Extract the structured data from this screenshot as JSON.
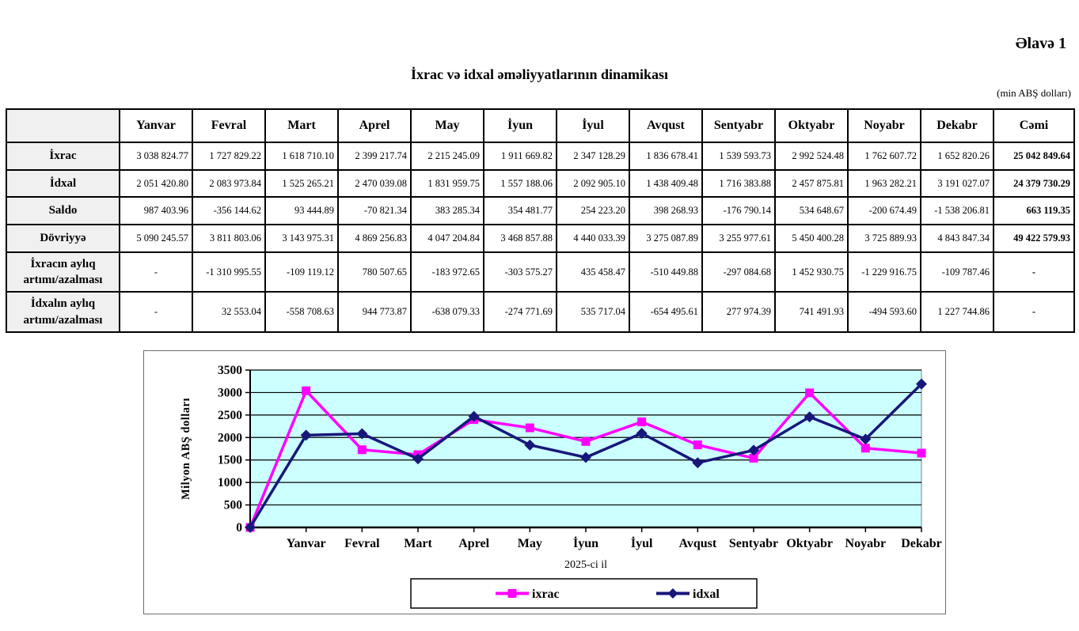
{
  "page": {
    "annex": "Əlavə 1",
    "title": "İxrac və idxal əməliyyatlarının dinamikası",
    "unit_note": "(min ABŞ dolları)"
  },
  "table": {
    "columns": [
      "",
      "Yanvar",
      "Fevral",
      "Mart",
      "Aprel",
      "May",
      "İyun",
      "İyul",
      "Avqust",
      "Sentyabr",
      "Oktyabr",
      "Noyabr",
      "Dekabr",
      "Cəmi"
    ],
    "rows": [
      {
        "label": "İxrac",
        "values": [
          "3 038 824.77",
          "1 727 829.22",
          "1 618 710.10",
          "2 399 217.74",
          "2 215 245.09",
          "1 911 669.82",
          "2 347 128.29",
          "1 836 678.41",
          "1 539 593.73",
          "2 992 524.48",
          "1 762 607.72",
          "1 652 820.26",
          "25 042 849.64"
        ]
      },
      {
        "label": "İdxal",
        "values": [
          "2 051 420.80",
          "2 083 973.84",
          "1 525 265.21",
          "2 470 039.08",
          "1 831 959.75",
          "1 557 188.06",
          "2 092 905.10",
          "1 438 409.48",
          "1 716 383.88",
          "2 457 875.81",
          "1 963 282.21",
          "3 191 027.07",
          "24 379 730.29"
        ]
      },
      {
        "label": "Saldo",
        "values": [
          "987 403.96",
          "-356 144.62",
          "93 444.89",
          "-70 821.34",
          "383 285.34",
          "354 481.77",
          "254 223.20",
          "398 268.93",
          "-176 790.14",
          "534 648.67",
          "-200 674.49",
          "-1 538 206.81",
          "663 119.35"
        ]
      },
      {
        "label": "Dövriyyə",
        "values": [
          "5 090 245.57",
          "3 811 803.06",
          "3 143 975.31",
          "4 869 256.83",
          "4 047 204.84",
          "3 468 857.88",
          "4 440 033.39",
          "3 275 087.89",
          "3 255 977.61",
          "5 450 400.28",
          "3 725 889.93",
          "4 843 847.34",
          "49 422 579.93"
        ]
      },
      {
        "label": "İxracın aylıq artımı/azalması",
        "values": [
          "-",
          "-1 310 995.55",
          "-109 119.12",
          "780 507.65",
          "-183 972.65",
          "-303 575.27",
          "435 458.47",
          "-510 449.88",
          "-297 084.68",
          "1 452 930.75",
          "-1 229 916.75",
          "-109 787.46",
          "-"
        ]
      },
      {
        "label": "İdxalın aylıq artımı/azalması",
        "values": [
          "-",
          "32 553.04",
          "-558 708.63",
          "944 773.87",
          "-638 079.33",
          "-274 771.69",
          "535 717.04",
          "-654 495.61",
          "277 974.39",
          "741 491.93",
          "-494 593.60",
          "1 227 744.86",
          "-"
        ]
      }
    ]
  },
  "chart_data": {
    "type": "line",
    "categories": [
      "",
      "Yanvar",
      "Fevral",
      "Mart",
      "Aprel",
      "May",
      "İyun",
      "İyul",
      "Avqust",
      "Sentyabr",
      "Oktyabr",
      "Noyabr",
      "Dekabr"
    ],
    "series": [
      {
        "name": "ixrac",
        "color": "#FF00FF",
        "marker": "square",
        "values": [
          0,
          3038.8,
          1727.8,
          1618.7,
          2399.2,
          2215.2,
          1911.7,
          2347.1,
          1836.7,
          1539.6,
          2992.5,
          1762.6,
          1652.8
        ]
      },
      {
        "name": "idxal",
        "color": "#17177A",
        "marker": "diamond",
        "values": [
          0,
          2051.4,
          2084.0,
          1525.3,
          2470.0,
          1832.0,
          1557.2,
          2092.9,
          1438.4,
          1716.4,
          2457.9,
          1963.3,
          3191.0
        ]
      }
    ],
    "title": "",
    "xlabel": "2025-ci il",
    "ylabel": "Milyon ABŞ dolları",
    "ylim": [
      0,
      3500
    ],
    "ytick_step": 500,
    "yticks": [
      0,
      500,
      1000,
      1500,
      2000,
      2500,
      3000,
      3500
    ],
    "plot_bg": "#CCFFFF",
    "grid": "on",
    "legend_position": "bottom"
  }
}
